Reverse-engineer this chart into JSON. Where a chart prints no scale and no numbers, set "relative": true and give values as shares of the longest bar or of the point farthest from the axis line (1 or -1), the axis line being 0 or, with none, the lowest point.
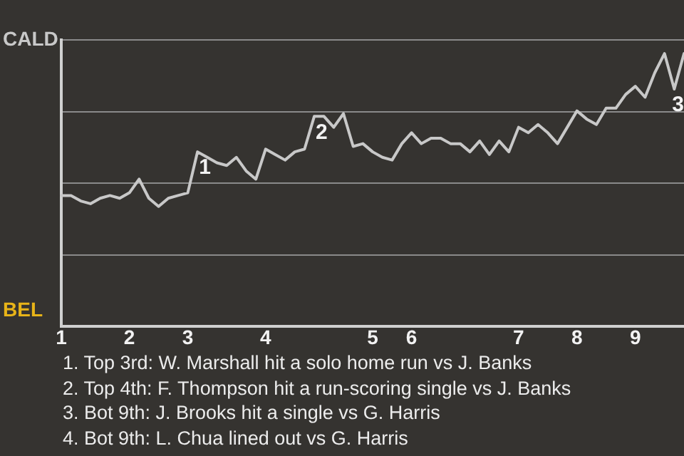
{
  "chart_data": {
    "type": "line",
    "categories": [
      "1",
      null,
      null,
      null,
      null,
      null,
      null,
      "2",
      null,
      null,
      null,
      null,
      null,
      "3",
      null,
      null,
      null,
      null,
      null,
      null,
      null,
      "4",
      null,
      null,
      null,
      null,
      null,
      null,
      null,
      null,
      null,
      null,
      "5",
      null,
      null,
      null,
      "6",
      null,
      null,
      null,
      null,
      null,
      null,
      null,
      null,
      null,
      null,
      "7",
      null,
      null,
      null,
      null,
      null,
      "8",
      null,
      null,
      null,
      null,
      null,
      "9",
      null,
      null,
      null,
      null,
      null
    ],
    "relative": true,
    "series": [
      {
        "color": "#c8c8c8",
        "values": [
          0.48,
          0.48,
          0.46,
          0.45,
          0.47,
          0.48,
          0.47,
          0.49,
          0.54,
          0.47,
          0.44,
          0.47,
          0.48,
          0.49,
          0.64,
          0.62,
          0.6,
          0.59,
          0.62,
          0.57,
          0.54,
          0.65,
          0.63,
          0.61,
          0.64,
          0.65,
          0.77,
          0.77,
          0.73,
          0.78,
          0.66,
          0.67,
          0.64,
          0.62,
          0.61,
          0.67,
          0.71,
          0.67,
          0.69,
          0.69,
          0.67,
          0.67,
          0.64,
          0.68,
          0.63,
          0.68,
          0.64,
          0.73,
          0.71,
          0.74,
          0.71,
          0.67,
          0.73,
          0.79,
          0.76,
          0.74,
          0.8,
          0.8,
          0.85,
          0.88,
          0.84,
          0.93,
          1,
          0.87,
          1
        ]
      }
    ],
    "grid": "y",
    "marker": "none",
    "line_style": "solid",
    "annotations": [
      "CALD",
      "BEL",
      {
        "text": "1",
        "y": 0.64
      },
      {
        "text": "2",
        "y": 0.77
      },
      {
        "text": "3",
        "y": 0.87
      },
      "1. Top 3rd: W. Marshall hit a solo home run vs J. Banks",
      "2. Top 4th: F. Thompson hit a run-scoring single vs J. Banks",
      "3. Bot 9th: J. Brooks hit a single vs G. Harris",
      "4. Bot 9th: L. Chua lined out vs G. Harris"
    ]
  }
}
